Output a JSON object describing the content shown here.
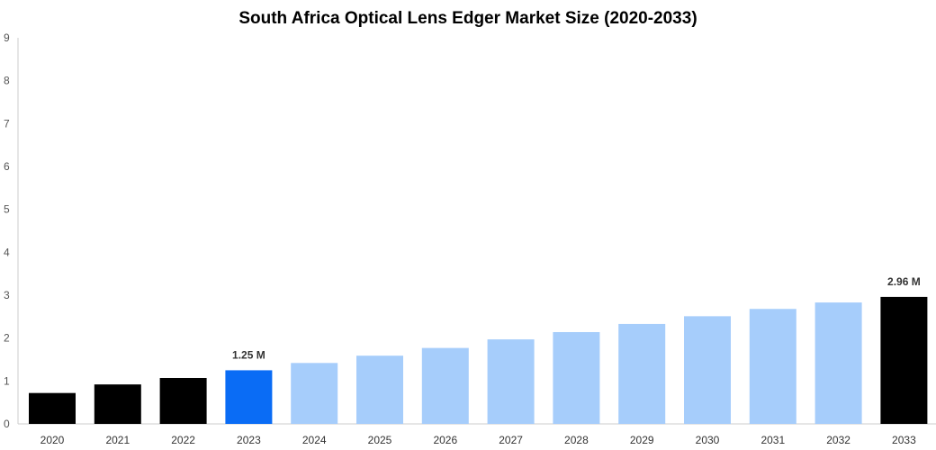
{
  "chart_data": {
    "type": "bar",
    "title": "South Africa Optical Lens Edger Market Size (2020-2033)",
    "xlabel": "",
    "ylabel": "",
    "categories": [
      "2020",
      "2021",
      "2022",
      "2023",
      "2024",
      "2025",
      "2026",
      "2027",
      "2028",
      "2029",
      "2030",
      "2031",
      "2032",
      "2033"
    ],
    "values": [
      0.72,
      0.92,
      1.07,
      1.25,
      1.42,
      1.59,
      1.77,
      1.97,
      2.14,
      2.33,
      2.51,
      2.68,
      2.83,
      2.96
    ],
    "ylim": [
      0,
      9
    ],
    "yticks": [
      0,
      1,
      2,
      3,
      4,
      5,
      6,
      7,
      8,
      9
    ],
    "grid": false,
    "bar_colors": [
      "#000000",
      "#000000",
      "#000000",
      "#0a6cf5",
      "#a6cdfb",
      "#a6cdfb",
      "#a6cdfb",
      "#a6cdfb",
      "#a6cdfb",
      "#a6cdfb",
      "#a6cdfb",
      "#a6cdfb",
      "#a6cdfb",
      "#000000"
    ],
    "data_labels": [
      {
        "category": "2023",
        "text": "1.25 M"
      },
      {
        "category": "2033",
        "text": "2.96 M"
      }
    ]
  }
}
